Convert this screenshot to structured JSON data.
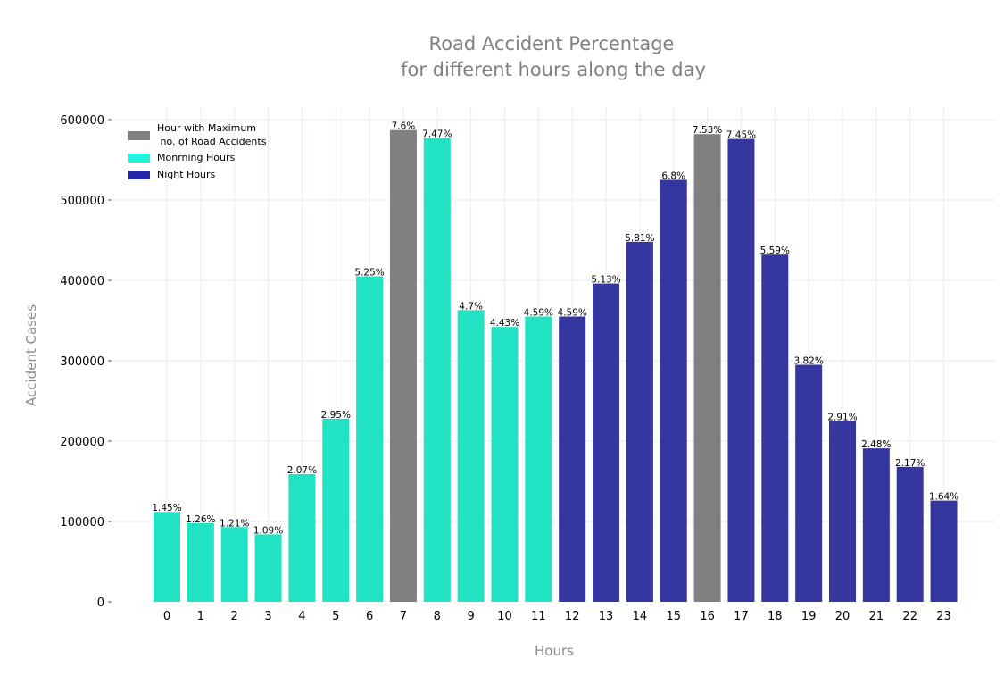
{
  "chart_data": {
    "type": "bar",
    "title_lines": [
      "Road Accident Percentage",
      "for different hours along the day"
    ],
    "xlabel": "Hours",
    "ylabel": "Accident Cases",
    "ylim": [
      0,
      600000
    ],
    "yticks": [
      0,
      100000,
      200000,
      300000,
      400000,
      500000,
      600000
    ],
    "grid": true,
    "legend_position": "top-left",
    "colors": {
      "max": "#808080",
      "morning": "#22e2c4",
      "night": "#3636a0",
      "legend_max": "#808080",
      "legend_morning": "#1ff5da",
      "legend_night": "#2424a8"
    },
    "legend": [
      {
        "group": "max",
        "lines": [
          "Hour with Maximum",
          " no. of Road Accidents"
        ]
      },
      {
        "group": "morning",
        "lines": [
          "Monrning Hours"
        ]
      },
      {
        "group": "night",
        "lines": [
          "Night Hours"
        ]
      }
    ],
    "categories": [
      "0",
      "1",
      "2",
      "3",
      "4",
      "5",
      "6",
      "7",
      "8",
      "9",
      "10",
      "11",
      "12",
      "13",
      "14",
      "15",
      "16",
      "17",
      "18",
      "19",
      "20",
      "21",
      "22",
      "23"
    ],
    "values": [
      112000,
      98000,
      93000,
      84000,
      159000,
      228000,
      405000,
      587000,
      577000,
      363000,
      342000,
      355000,
      355000,
      396000,
      448000,
      525000,
      582000,
      576000,
      432000,
      295000,
      225000,
      191000,
      168000,
      126000
    ],
    "labels": [
      "1.45%",
      "1.26%",
      "1.21%",
      "1.09%",
      "2.07%",
      "2.95%",
      "5.25%",
      "7.6%",
      "7.47%",
      "4.7%",
      "4.43%",
      "4.59%",
      "4.59%",
      "5.13%",
      "5.81%",
      "6.8%",
      "7.53%",
      "7.45%",
      "5.59%",
      "3.82%",
      "2.91%",
      "2.48%",
      "2.17%",
      "1.64%"
    ],
    "groups": [
      "morning",
      "morning",
      "morning",
      "morning",
      "morning",
      "morning",
      "morning",
      "max",
      "morning",
      "morning",
      "morning",
      "morning",
      "night",
      "night",
      "night",
      "night",
      "max",
      "night",
      "night",
      "night",
      "night",
      "night",
      "night",
      "night"
    ]
  }
}
